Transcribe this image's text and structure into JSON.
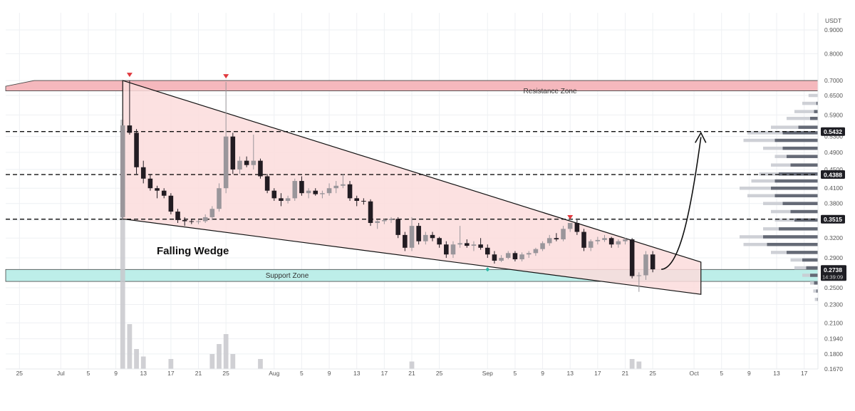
{
  "chart_data": {
    "type": "candlestick",
    "currency": "USDT",
    "y_axis": {
      "scale": "log",
      "ticks": [
        0.9,
        0.8,
        0.7,
        0.65,
        0.59,
        0.53,
        0.49,
        0.45,
        0.41,
        0.38,
        0.35,
        0.32,
        0.29,
        0.27,
        0.25,
        0.23,
        0.21,
        0.194,
        0.18,
        0.167
      ],
      "tick_labels": [
        "0.9000",
        "0.8000",
        "0.7000",
        "0.6500",
        "0.5900",
        "0.5300",
        "0.4900",
        "0.4500",
        "0.4100",
        "0.3800",
        "0.3500",
        "0.3200",
        "0.2900",
        "0.2700",
        "0.2500",
        "0.2300",
        "0.2100",
        "0.1940",
        "0.1800",
        "0.1670"
      ],
      "range": [
        0.167,
        0.98
      ]
    },
    "x_axis": {
      "ticks": [
        {
          "date": "2024-06-25",
          "label": "25"
        },
        {
          "date": "2024-07-01",
          "label": "Jul"
        },
        {
          "date": "2024-07-05",
          "label": "5"
        },
        {
          "date": "2024-07-09",
          "label": "9"
        },
        {
          "date": "2024-07-13",
          "label": "13"
        },
        {
          "date": "2024-07-17",
          "label": "17"
        },
        {
          "date": "2024-07-21",
          "label": "21"
        },
        {
          "date": "2024-07-25",
          "label": "25"
        },
        {
          "date": "2024-08-01",
          "label": "Aug"
        },
        {
          "date": "2024-08-05",
          "label": "5"
        },
        {
          "date": "2024-08-09",
          "label": "9"
        },
        {
          "date": "2024-08-13",
          "label": "13"
        },
        {
          "date": "2024-08-17",
          "label": "17"
        },
        {
          "date": "2024-08-21",
          "label": "21"
        },
        {
          "date": "2024-08-25",
          "label": "25"
        },
        {
          "date": "2024-09-01",
          "label": "Sep"
        },
        {
          "date": "2024-09-05",
          "label": "5"
        },
        {
          "date": "2024-09-09",
          "label": "9"
        },
        {
          "date": "2024-09-13",
          "label": "13"
        },
        {
          "date": "2024-09-17",
          "label": "17"
        },
        {
          "date": "2024-09-21",
          "label": "21"
        },
        {
          "date": "2024-09-25",
          "label": "25"
        },
        {
          "date": "2024-10-01",
          "label": "Oct"
        },
        {
          "date": "2024-10-05",
          "label": "5"
        },
        {
          "date": "2024-10-09",
          "label": "9"
        },
        {
          "date": "2024-10-13",
          "label": "13"
        },
        {
          "date": "2024-10-17",
          "label": "17"
        }
      ],
      "range": [
        "2024-06-23",
        "2024-10-19"
      ]
    },
    "grid": true,
    "candles": [
      {
        "date": "2024-07-10",
        "o": 0.355,
        "h": 0.56,
        "l": 0.35,
        "c": 0.56
      },
      {
        "date": "2024-07-11",
        "o": 0.56,
        "h": 0.7,
        "l": 0.535,
        "c": 0.54
      },
      {
        "date": "2024-07-12",
        "o": 0.54,
        "h": 0.55,
        "l": 0.44,
        "c": 0.455
      },
      {
        "date": "2024-07-13",
        "o": 0.455,
        "h": 0.47,
        "l": 0.42,
        "c": 0.43
      },
      {
        "date": "2024-07-14",
        "o": 0.43,
        "h": 0.44,
        "l": 0.405,
        "c": 0.41
      },
      {
        "date": "2024-07-15",
        "o": 0.41,
        "h": 0.415,
        "l": 0.39,
        "c": 0.405
      },
      {
        "date": "2024-07-16",
        "o": 0.405,
        "h": 0.41,
        "l": 0.39,
        "c": 0.395
      },
      {
        "date": "2024-07-17",
        "o": 0.395,
        "h": 0.4,
        "l": 0.36,
        "c": 0.365
      },
      {
        "date": "2024-07-18",
        "o": 0.365,
        "h": 0.37,
        "l": 0.345,
        "c": 0.35
      },
      {
        "date": "2024-07-19",
        "o": 0.35,
        "h": 0.355,
        "l": 0.34,
        "c": 0.348
      },
      {
        "date": "2024-07-20",
        "o": 0.348,
        "h": 0.352,
        "l": 0.343,
        "c": 0.347
      },
      {
        "date": "2024-07-21",
        "o": 0.347,
        "h": 0.35,
        "l": 0.343,
        "c": 0.348
      },
      {
        "date": "2024-07-22",
        "o": 0.348,
        "h": 0.36,
        "l": 0.345,
        "c": 0.355
      },
      {
        "date": "2024-07-23",
        "o": 0.355,
        "h": 0.375,
        "l": 0.35,
        "c": 0.37
      },
      {
        "date": "2024-07-24",
        "o": 0.37,
        "h": 0.42,
        "l": 0.365,
        "c": 0.41
      },
      {
        "date": "2024-07-25",
        "o": 0.41,
        "h": 0.695,
        "l": 0.4,
        "c": 0.53
      },
      {
        "date": "2024-07-26",
        "o": 0.53,
        "h": 0.54,
        "l": 0.44,
        "c": 0.45
      },
      {
        "date": "2024-07-27",
        "o": 0.45,
        "h": 0.48,
        "l": 0.44,
        "c": 0.47
      },
      {
        "date": "2024-07-28",
        "o": 0.47,
        "h": 0.48,
        "l": 0.455,
        "c": 0.46
      },
      {
        "date": "2024-07-29",
        "o": 0.46,
        "h": 0.535,
        "l": 0.45,
        "c": 0.47
      },
      {
        "date": "2024-07-30",
        "o": 0.47,
        "h": 0.475,
        "l": 0.43,
        "c": 0.435
      },
      {
        "date": "2024-07-31",
        "o": 0.435,
        "h": 0.44,
        "l": 0.4,
        "c": 0.405
      },
      {
        "date": "2024-08-01",
        "o": 0.405,
        "h": 0.41,
        "l": 0.385,
        "c": 0.39
      },
      {
        "date": "2024-08-02",
        "o": 0.39,
        "h": 0.4,
        "l": 0.375,
        "c": 0.385
      },
      {
        "date": "2024-08-03",
        "o": 0.385,
        "h": 0.395,
        "l": 0.38,
        "c": 0.39
      },
      {
        "date": "2024-08-04",
        "o": 0.39,
        "h": 0.43,
        "l": 0.385,
        "c": 0.425
      },
      {
        "date": "2024-08-05",
        "o": 0.425,
        "h": 0.435,
        "l": 0.395,
        "c": 0.4
      },
      {
        "date": "2024-08-06",
        "o": 0.4,
        "h": 0.41,
        "l": 0.39,
        "c": 0.405
      },
      {
        "date": "2024-08-07",
        "o": 0.405,
        "h": 0.41,
        "l": 0.395,
        "c": 0.398
      },
      {
        "date": "2024-08-08",
        "o": 0.398,
        "h": 0.405,
        "l": 0.39,
        "c": 0.4
      },
      {
        "date": "2024-08-09",
        "o": 0.4,
        "h": 0.42,
        "l": 0.395,
        "c": 0.41
      },
      {
        "date": "2024-08-10",
        "o": 0.41,
        "h": 0.425,
        "l": 0.4,
        "c": 0.415
      },
      {
        "date": "2024-08-11",
        "o": 0.415,
        "h": 0.44,
        "l": 0.41,
        "c": 0.418
      },
      {
        "date": "2024-08-12",
        "o": 0.418,
        "h": 0.425,
        "l": 0.385,
        "c": 0.39
      },
      {
        "date": "2024-08-13",
        "o": 0.39,
        "h": 0.395,
        "l": 0.375,
        "c": 0.385
      },
      {
        "date": "2024-08-14",
        "o": 0.385,
        "h": 0.39,
        "l": 0.378,
        "c": 0.384
      },
      {
        "date": "2024-08-15",
        "o": 0.384,
        "h": 0.388,
        "l": 0.34,
        "c": 0.345
      },
      {
        "date": "2024-08-16",
        "o": 0.345,
        "h": 0.35,
        "l": 0.335,
        "c": 0.348
      },
      {
        "date": "2024-08-17",
        "o": 0.348,
        "h": 0.352,
        "l": 0.343,
        "c": 0.35
      },
      {
        "date": "2024-08-18",
        "o": 0.35,
        "h": 0.355,
        "l": 0.345,
        "c": 0.352
      },
      {
        "date": "2024-08-19",
        "o": 0.352,
        "h": 0.355,
        "l": 0.32,
        "c": 0.325
      },
      {
        "date": "2024-08-20",
        "o": 0.325,
        "h": 0.33,
        "l": 0.3,
        "c": 0.305
      },
      {
        "date": "2024-08-21",
        "o": 0.305,
        "h": 0.355,
        "l": 0.3,
        "c": 0.34
      },
      {
        "date": "2024-08-22",
        "o": 0.34,
        "h": 0.345,
        "l": 0.31,
        "c": 0.315
      },
      {
        "date": "2024-08-23",
        "o": 0.315,
        "h": 0.33,
        "l": 0.31,
        "c": 0.325
      },
      {
        "date": "2024-08-24",
        "o": 0.325,
        "h": 0.33,
        "l": 0.315,
        "c": 0.32
      },
      {
        "date": "2024-08-25",
        "o": 0.32,
        "h": 0.322,
        "l": 0.305,
        "c": 0.31
      },
      {
        "date": "2024-08-26",
        "o": 0.31,
        "h": 0.315,
        "l": 0.29,
        "c": 0.295
      },
      {
        "date": "2024-08-27",
        "o": 0.295,
        "h": 0.315,
        "l": 0.29,
        "c": 0.31
      },
      {
        "date": "2024-08-28",
        "o": 0.31,
        "h": 0.34,
        "l": 0.305,
        "c": 0.312
      },
      {
        "date": "2024-08-29",
        "o": 0.312,
        "h": 0.318,
        "l": 0.305,
        "c": 0.308
      },
      {
        "date": "2024-08-30",
        "o": 0.308,
        "h": 0.315,
        "l": 0.3,
        "c": 0.31
      },
      {
        "date": "2024-08-31",
        "o": 0.31,
        "h": 0.32,
        "l": 0.302,
        "c": 0.305
      },
      {
        "date": "2024-09-01",
        "o": 0.305,
        "h": 0.31,
        "l": 0.29,
        "c": 0.295
      },
      {
        "date": "2024-09-02",
        "o": 0.295,
        "h": 0.3,
        "l": 0.282,
        "c": 0.286
      },
      {
        "date": "2024-09-03",
        "o": 0.286,
        "h": 0.294,
        "l": 0.284,
        "c": 0.29
      },
      {
        "date": "2024-09-04",
        "o": 0.29,
        "h": 0.3,
        "l": 0.288,
        "c": 0.297
      },
      {
        "date": "2024-09-05",
        "o": 0.297,
        "h": 0.3,
        "l": 0.285,
        "c": 0.288
      },
      {
        "date": "2024-09-06",
        "o": 0.288,
        "h": 0.298,
        "l": 0.285,
        "c": 0.295
      },
      {
        "date": "2024-09-07",
        "o": 0.295,
        "h": 0.3,
        "l": 0.29,
        "c": 0.297
      },
      {
        "date": "2024-09-08",
        "o": 0.297,
        "h": 0.305,
        "l": 0.293,
        "c": 0.303
      },
      {
        "date": "2024-09-09",
        "o": 0.303,
        "h": 0.315,
        "l": 0.3,
        "c": 0.312
      },
      {
        "date": "2024-09-10",
        "o": 0.312,
        "h": 0.325,
        "l": 0.308,
        "c": 0.32
      },
      {
        "date": "2024-09-11",
        "o": 0.32,
        "h": 0.328,
        "l": 0.315,
        "c": 0.318
      },
      {
        "date": "2024-09-12",
        "o": 0.318,
        "h": 0.34,
        "l": 0.315,
        "c": 0.335
      },
      {
        "date": "2024-09-13",
        "o": 0.335,
        "h": 0.345,
        "l": 0.33,
        "c": 0.345
      },
      {
        "date": "2024-09-14",
        "o": 0.345,
        "h": 0.35,
        "l": 0.325,
        "c": 0.33
      },
      {
        "date": "2024-09-15",
        "o": 0.33,
        "h": 0.335,
        "l": 0.3,
        "c": 0.305
      },
      {
        "date": "2024-09-16",
        "o": 0.305,
        "h": 0.318,
        "l": 0.3,
        "c": 0.315
      },
      {
        "date": "2024-09-17",
        "o": 0.315,
        "h": 0.322,
        "l": 0.31,
        "c": 0.317
      },
      {
        "date": "2024-09-18",
        "o": 0.317,
        "h": 0.325,
        "l": 0.314,
        "c": 0.32
      },
      {
        "date": "2024-09-19",
        "o": 0.32,
        "h": 0.322,
        "l": 0.305,
        "c": 0.31
      },
      {
        "date": "2024-09-20",
        "o": 0.31,
        "h": 0.318,
        "l": 0.305,
        "c": 0.315
      },
      {
        "date": "2024-09-21",
        "o": 0.315,
        "h": 0.32,
        "l": 0.31,
        "c": 0.318
      },
      {
        "date": "2024-09-22",
        "o": 0.318,
        "h": 0.32,
        "l": 0.262,
        "c": 0.265
      },
      {
        "date": "2024-09-23",
        "o": 0.265,
        "h": 0.27,
        "l": 0.245,
        "c": 0.266
      },
      {
        "date": "2024-09-24",
        "o": 0.266,
        "h": 0.3,
        "l": 0.26,
        "c": 0.295
      },
      {
        "date": "2024-09-25",
        "o": 0.295,
        "h": 0.3,
        "l": 0.27,
        "c": 0.274
      }
    ],
    "volume": [
      {
        "date": "2024-07-10",
        "v": 100
      },
      {
        "date": "2024-07-11",
        "v": 18
      },
      {
        "date": "2024-07-12",
        "v": 8
      },
      {
        "date": "2024-07-13",
        "v": 5
      },
      {
        "date": "2024-07-17",
        "v": 4
      },
      {
        "date": "2024-07-23",
        "v": 6
      },
      {
        "date": "2024-07-24",
        "v": 10
      },
      {
        "date": "2024-07-25",
        "v": 14
      },
      {
        "date": "2024-07-26",
        "v": 6
      },
      {
        "date": "2024-07-30",
        "v": 4
      },
      {
        "date": "2024-08-21",
        "v": 3
      },
      {
        "date": "2024-09-22",
        "v": 4
      },
      {
        "date": "2024-09-23",
        "v": 3
      }
    ],
    "volume_profile": [
      {
        "price": 0.58,
        "light": 0.4,
        "dark": 0.1
      },
      {
        "price": 0.555,
        "light": 0.6,
        "dark": 0.25
      },
      {
        "price": 0.54,
        "light": 0.9,
        "dark": 0.45
      },
      {
        "price": 0.52,
        "light": 0.95,
        "dark": 0.55
      },
      {
        "price": 0.5,
        "light": 0.7,
        "dark": 0.45
      },
      {
        "price": 0.48,
        "light": 0.55,
        "dark": 0.4
      },
      {
        "price": 0.46,
        "light": 0.6,
        "dark": 0.35
      },
      {
        "price": 0.44,
        "light": 0.75,
        "dark": 0.5
      },
      {
        "price": 0.425,
        "light": 0.85,
        "dark": 0.55
      },
      {
        "price": 0.41,
        "light": 1.0,
        "dark": 0.6
      },
      {
        "price": 0.395,
        "light": 0.9,
        "dark": 0.55
      },
      {
        "price": 0.38,
        "light": 0.7,
        "dark": 0.45
      },
      {
        "price": 0.365,
        "light": 0.6,
        "dark": 0.35
      },
      {
        "price": 0.35,
        "light": 0.55,
        "dark": 0.3
      },
      {
        "price": 0.335,
        "light": 0.7,
        "dark": 0.5
      },
      {
        "price": 0.322,
        "light": 1.0,
        "dark": 0.7
      },
      {
        "price": 0.31,
        "light": 0.95,
        "dark": 0.65
      },
      {
        "price": 0.298,
        "light": 0.6,
        "dark": 0.4
      },
      {
        "price": 0.287,
        "light": 0.35,
        "dark": 0.2
      },
      {
        "price": 0.276,
        "light": 0.3,
        "dark": 0.15
      },
      {
        "price": 0.266,
        "light": 0.2,
        "dark": 0.1
      },
      {
        "price": 0.256,
        "light": 0.1,
        "dark": 0.05
      },
      {
        "price": 0.246,
        "light": 0.06,
        "dark": 0.02
      },
      {
        "price": 0.236,
        "light": 0.04,
        "dark": 0.01
      },
      {
        "price": 0.6,
        "light": 0.3,
        "dark": 0.05
      },
      {
        "price": 0.625,
        "light": 0.2,
        "dark": 0.02
      },
      {
        "price": 0.65,
        "light": 0.12,
        "dark": 0.0
      }
    ],
    "zones": [
      {
        "name": "Resistance Zone",
        "low": 0.665,
        "high": 0.7,
        "color": "#f5b8bd"
      },
      {
        "name": "Support Zone",
        "low": 0.258,
        "high": 0.2738,
        "color": "#bdeee9"
      }
    ],
    "levels": [
      {
        "value": 0.5432,
        "label": "0.5432"
      },
      {
        "value": 0.4388,
        "label": "0.4388"
      },
      {
        "value": 0.3515,
        "label": "0.3515"
      }
    ],
    "wedge": {
      "label": "Falling Wedge",
      "upper": [
        {
          "date": "2024-07-10",
          "price": 0.7
        },
        {
          "date": "2024-10-02",
          "price": 0.284
        }
      ],
      "lower": [
        {
          "date": "2024-07-10",
          "price": 0.352
        },
        {
          "date": "2024-10-02",
          "price": 0.242
        }
      ],
      "fill": "#fcdcdc"
    },
    "markers": [
      {
        "date": "2024-07-11",
        "price": 0.7,
        "type": "down-arrow"
      },
      {
        "date": "2024-07-25",
        "price": 0.695,
        "type": "down-arrow"
      },
      {
        "date": "2024-09-13",
        "price": 0.345,
        "type": "down-arrow"
      },
      {
        "date": "2024-09-01",
        "price": 0.2738,
        "type": "diamond"
      }
    ],
    "projection": [
      {
        "date": "2024-09-25",
        "price": 0.274
      },
      {
        "date": "2024-09-28",
        "price": 0.285
      },
      {
        "date": "2024-10-01",
        "price": 0.4
      },
      {
        "date": "2024-10-02",
        "price": 0.54
      }
    ],
    "last_price": {
      "value": 0.2738,
      "label": "0.2738",
      "countdown": "14:39:09"
    },
    "colors": {
      "bull": "#9a969b",
      "bear": "#221c22",
      "grid": "#eef0f3",
      "text": "#555555",
      "price_tag_bg": "#1e1e24",
      "resistance": "#f5b8bd",
      "support": "#bdeee9",
      "marker": "#e0393e",
      "marker_diamond": "#2fb7a6"
    }
  }
}
